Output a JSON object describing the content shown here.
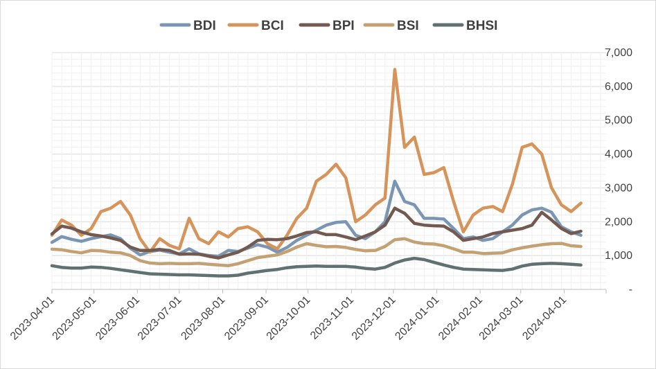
{
  "chart_data": {
    "type": "line",
    "title": "",
    "xlabel": "",
    "ylabel": "",
    "y_axis_side": "right",
    "ylim": [
      0,
      7000
    ],
    "y_ticks": [
      0,
      1000,
      2000,
      3000,
      4000,
      5000,
      6000,
      7000
    ],
    "y_tick_labels": [
      "-",
      "1,000",
      "2,000",
      "3,000",
      "4,000",
      "5,000",
      "6,000",
      "7,000"
    ],
    "x_tick_labels": [
      "2023-04-01",
      "2023-05-01",
      "2023-06-01",
      "2023-07-01",
      "2023-08-01",
      "2023-09-01",
      "2023-10-01",
      "2023-11-01",
      "2023-12-01",
      "2024-01-01",
      "2024-02-01",
      "2024-03-01",
      "2024-04-01"
    ],
    "xlim": [
      "2023-04-01",
      "2024-05-01"
    ],
    "grid": true,
    "legend_position": "top",
    "x": [
      "2023-04-01",
      "2023-04-08",
      "2023-04-15",
      "2023-04-22",
      "2023-04-29",
      "2023-05-06",
      "2023-05-13",
      "2023-05-20",
      "2023-05-27",
      "2023-06-03",
      "2023-06-10",
      "2023-06-17",
      "2023-06-24",
      "2023-07-01",
      "2023-07-08",
      "2023-07-15",
      "2023-07-22",
      "2023-07-29",
      "2023-08-05",
      "2023-08-12",
      "2023-08-19",
      "2023-08-26",
      "2023-09-02",
      "2023-09-09",
      "2023-09-16",
      "2023-09-23",
      "2023-09-30",
      "2023-10-07",
      "2023-10-14",
      "2023-10-21",
      "2023-10-28",
      "2023-11-04",
      "2023-11-11",
      "2023-11-18",
      "2023-11-25",
      "2023-12-02",
      "2023-12-09",
      "2023-12-16",
      "2023-12-23",
      "2023-12-30",
      "2024-01-06",
      "2024-01-13",
      "2024-01-20",
      "2024-01-27",
      "2024-02-03",
      "2024-02-10",
      "2024-02-17",
      "2024-02-24",
      "2024-03-02",
      "2024-03-09",
      "2024-03-16",
      "2024-03-23",
      "2024-03-30",
      "2024-04-06",
      "2024-04-13"
    ],
    "series": [
      {
        "name": "BDI",
        "color": "#7a96b3",
        "values": [
          1390,
          1560,
          1480,
          1420,
          1500,
          1560,
          1610,
          1500,
          1220,
          1020,
          1120,
          1160,
          1100,
          1050,
          1200,
          1050,
          1000,
          980,
          1150,
          1120,
          1220,
          1320,
          1250,
          1100,
          1240,
          1450,
          1600,
          1750,
          1900,
          1980,
          2000,
          1600,
          1500,
          1700,
          2000,
          3200,
          2600,
          2500,
          2100,
          2100,
          2080,
          1800,
          1500,
          1550,
          1450,
          1500,
          1700,
          1900,
          2200,
          2350,
          2400,
          2280,
          1850,
          1700,
          1600
        ]
      },
      {
        "name": "BCI",
        "color": "#d6935a",
        "values": [
          1600,
          2050,
          1900,
          1600,
          1800,
          2300,
          2400,
          2600,
          2200,
          1500,
          1100,
          1500,
          1300,
          1200,
          2100,
          1500,
          1350,
          1700,
          1550,
          1800,
          1850,
          1700,
          1350,
          1200,
          1600,
          2100,
          2400,
          3200,
          3400,
          3700,
          3300,
          2000,
          2200,
          2500,
          2700,
          6500,
          4200,
          4500,
          3400,
          3450,
          3600,
          2600,
          1700,
          2200,
          2400,
          2450,
          2300,
          3100,
          4200,
          4300,
          4000,
          3000,
          2500,
          2300,
          2550
        ]
      },
      {
        "name": "BPI",
        "color": "#735a50",
        "values": [
          1640,
          1870,
          1810,
          1700,
          1620,
          1580,
          1520,
          1450,
          1250,
          1150,
          1150,
          1180,
          1150,
          1040,
          1050,
          1040,
          980,
          930,
          1020,
          1100,
          1250,
          1450,
          1480,
          1470,
          1500,
          1580,
          1680,
          1700,
          1620,
          1620,
          1550,
          1470,
          1580,
          1700,
          1900,
          2400,
          2250,
          1950,
          1900,
          1880,
          1870,
          1700,
          1450,
          1500,
          1550,
          1650,
          1700,
          1750,
          1800,
          1900,
          2280,
          2050,
          1800,
          1650,
          1720
        ]
      },
      {
        "name": "BSI",
        "color": "#c3a173",
        "values": [
          1190,
          1170,
          1120,
          1080,
          1150,
          1140,
          1100,
          1080,
          1000,
          850,
          780,
          760,
          770,
          760,
          760,
          770,
          740,
          720,
          700,
          760,
          850,
          940,
          980,
          1020,
          1120,
          1250,
          1350,
          1300,
          1260,
          1270,
          1240,
          1180,
          1140,
          1150,
          1270,
          1470,
          1500,
          1400,
          1350,
          1340,
          1290,
          1200,
          1100,
          1100,
          1060,
          1070,
          1080,
          1170,
          1230,
          1280,
          1320,
          1350,
          1360,
          1290,
          1270
        ]
      },
      {
        "name": "BHSI",
        "color": "#5f7171",
        "values": [
          700,
          650,
          630,
          630,
          660,
          650,
          620,
          580,
          540,
          500,
          460,
          450,
          440,
          430,
          430,
          420,
          410,
          400,
          400,
          420,
          480,
          520,
          560,
          590,
          640,
          670,
          680,
          690,
          680,
          680,
          680,
          660,
          620,
          600,
          650,
          780,
          870,
          920,
          880,
          800,
          720,
          650,
          600,
          590,
          580,
          570,
          560,
          600,
          690,
          740,
          760,
          770,
          760,
          740,
          720
        ]
      }
    ]
  }
}
